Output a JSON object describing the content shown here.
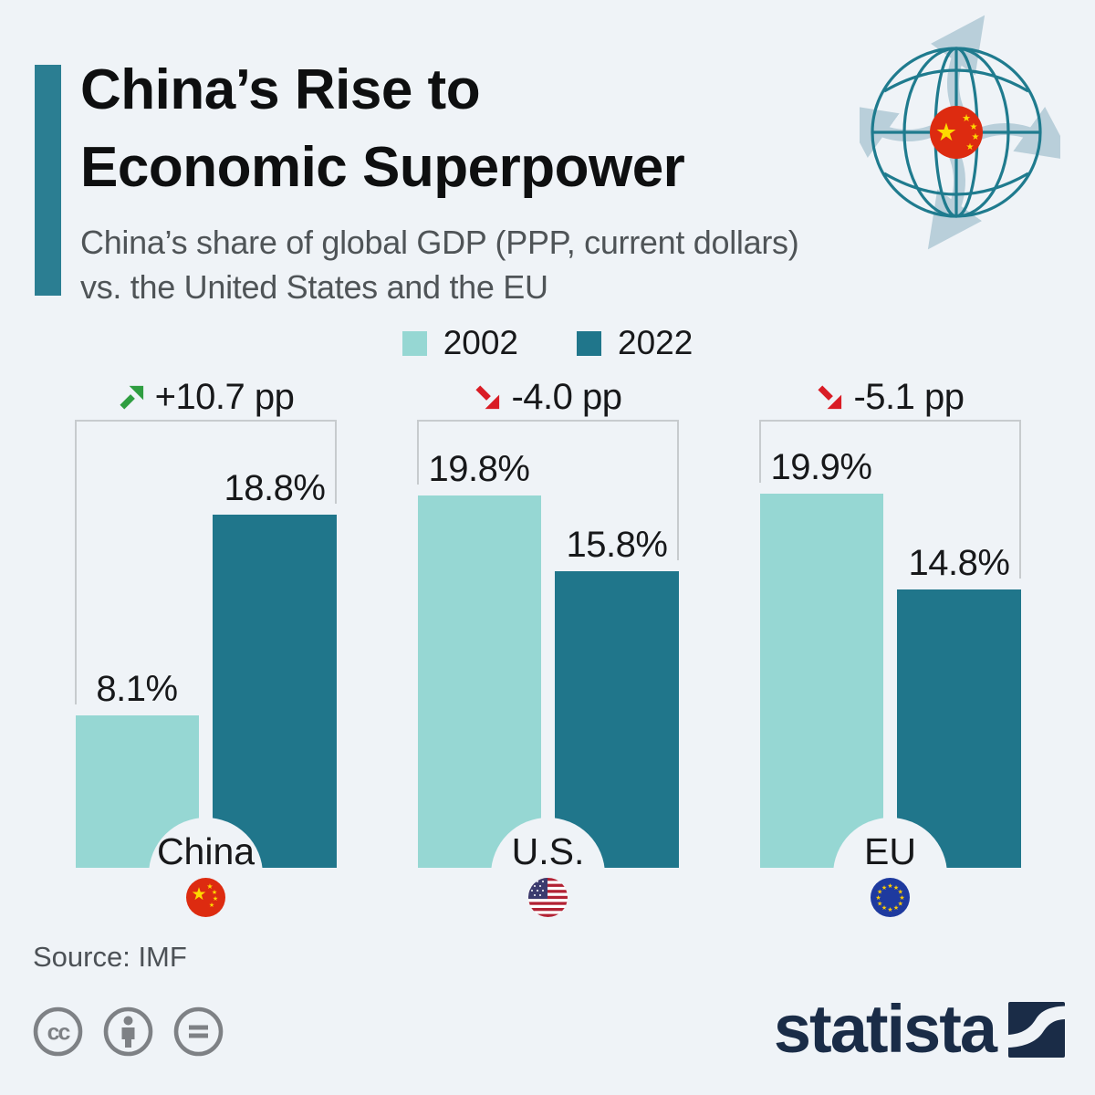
{
  "header": {
    "title_line1": "China’s Rise to",
    "title_line2": "Economic Superpower",
    "subtitle_line1": "China’s share of global GDP (PPP, current dollars)",
    "subtitle_line2": "vs. the United States and the EU"
  },
  "chart_data": {
    "type": "bar",
    "title": "China’s share of global GDP (PPP, current dollars) vs. the United States and the EU",
    "categories": [
      "China",
      "U.S.",
      "EU"
    ],
    "series": [
      {
        "name": "2002",
        "color": "#96d7d3",
        "values": [
          8.1,
          19.8,
          19.9
        ],
        "labels": [
          "8.1%",
          "19.8%",
          "19.9%"
        ]
      },
      {
        "name": "2022",
        "color": "#20768b",
        "values": [
          18.8,
          15.8,
          14.8
        ],
        "labels": [
          "18.8%",
          "15.8%",
          "14.8%"
        ]
      }
    ],
    "changes": [
      {
        "label": "+10.7 pp",
        "direction": "up",
        "color": "#2f9e41"
      },
      {
        "label": "-4.0 pp",
        "direction": "down",
        "color": "#d91c25"
      },
      {
        "label": "-5.1 pp",
        "direction": "down",
        "color": "#d91c25"
      }
    ],
    "ylabel": "",
    "xlabel": "",
    "ylim": [
      0,
      24
    ],
    "grid": false,
    "legend_position": "top-center"
  },
  "footer": {
    "source": "Source: IMF",
    "brand_text": "statista"
  },
  "icons": {
    "globe": "globe-with-china-flag-and-arrows",
    "license": [
      "cc-icon",
      "attribution-person-icon",
      "no-derivatives-equals-icon"
    ],
    "flags": [
      "china-flag",
      "us-flag",
      "eu-flag"
    ]
  },
  "colors": {
    "background": "#eff3f7",
    "accent_bar": "#2b7e92",
    "bar_2002": "#96d7d3",
    "bar_2022": "#20768b",
    "bracket": "#c7cbce",
    "arrow_up_green": "#2f9e41",
    "arrow_down_red": "#d91c25",
    "globe_teal": "#1f7b8e",
    "globe_arrow_gray": "#b9cfda",
    "brand_navy": "#1a2c47",
    "subtitle_gray": "#4f5457"
  }
}
